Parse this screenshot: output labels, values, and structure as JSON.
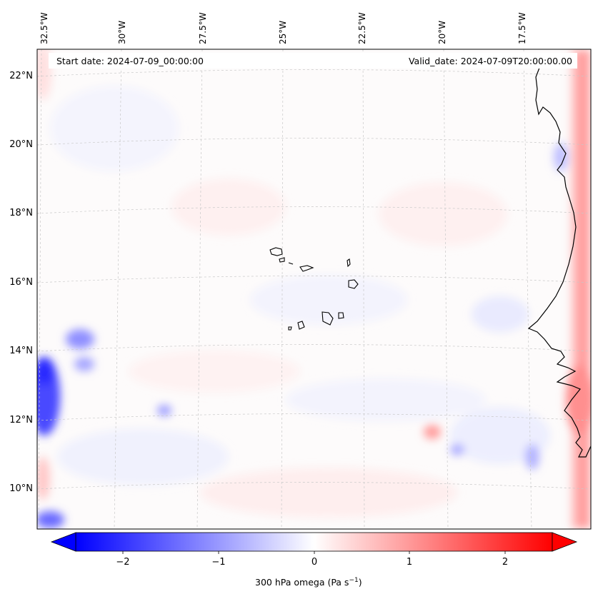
{
  "map": {
    "header_left": "Start date: 2024-07-09_00:00:00",
    "header_right": "Valid_date: 2024-07-09T20:00:00.00",
    "lon_labels": [
      "32.5°W",
      "30°W",
      "27.5°W",
      "25°W",
      "22.5°W",
      "20°W",
      "17.5°W"
    ],
    "lat_labels": [
      "22°N",
      "20°N",
      "18°N",
      "16°N",
      "14°N",
      "12°N",
      "10°N"
    ],
    "gridlines": true,
    "colormap": "bwr",
    "colors": {
      "negative": "#0000ff",
      "zero": "#ffffff",
      "positive": "#ff0000",
      "coastline": "#000000",
      "gridline": "#bbbbbb"
    }
  },
  "colorbar": {
    "tick_labels": [
      "−2",
      "−1",
      "0",
      "1",
      "2"
    ],
    "title": "300 hPa omega (Pa s",
    "title_sup": "−1",
    "title_end": ")",
    "range": [
      -2.6,
      2.6
    ],
    "extend": "both"
  }
}
